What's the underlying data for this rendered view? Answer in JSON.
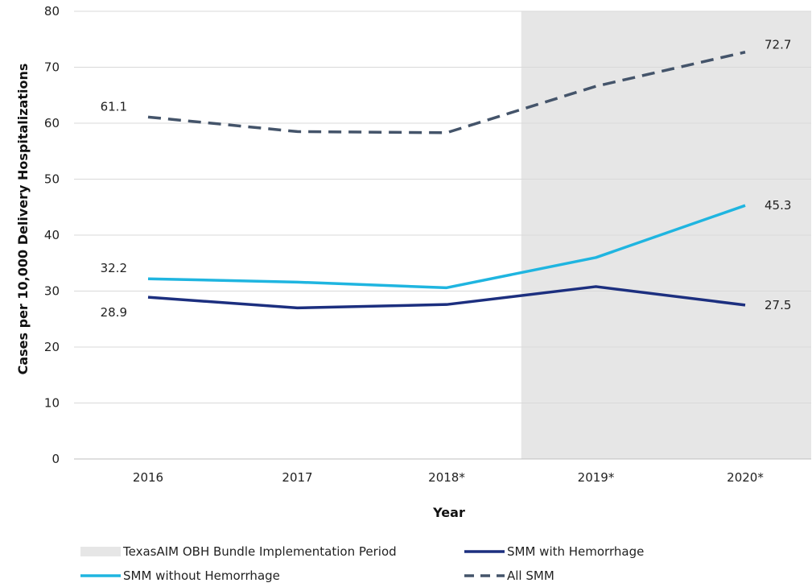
{
  "chart_data": {
    "type": "line",
    "categories": [
      "2016",
      "2017",
      "2018*",
      "2019*",
      "2020*"
    ],
    "xlabel": "Year",
    "ylabel": "Cases per 10,000 Delivery Hospitalizations",
    "ylim": [
      0,
      80
    ],
    "yticks": [
      0,
      10,
      20,
      30,
      40,
      50,
      60,
      70,
      80
    ],
    "grid": "horizontal",
    "shaded_region": {
      "label": "TexasAIM OBH Bundle Implementation Period",
      "from_category_index": 2.5,
      "to_category_index": 4.5,
      "color": "#e6e6e6"
    },
    "series": [
      {
        "name": "SMM with Hemorrhage",
        "values": [
          28.9,
          27.0,
          27.6,
          30.8,
          27.5
        ],
        "color": "#1c2f7f",
        "style": "solid",
        "labels": [
          {
            "index": 0,
            "text": "28.9",
            "pos": "below-left"
          },
          {
            "index": 4,
            "text": "27.5",
            "pos": "right"
          }
        ]
      },
      {
        "name": "SMM without Hemorrhage",
        "values": [
          32.2,
          31.6,
          30.6,
          36.0,
          45.3
        ],
        "color": "#1fb5e0",
        "style": "solid",
        "labels": [
          {
            "index": 0,
            "text": "32.2",
            "pos": "above-left"
          },
          {
            "index": 4,
            "text": "45.3",
            "pos": "right"
          }
        ]
      },
      {
        "name": "All SMM",
        "values": [
          61.1,
          58.5,
          58.3,
          66.6,
          72.7
        ],
        "color": "#44546a",
        "style": "dashed",
        "labels": [
          {
            "index": 0,
            "text": "61.1",
            "pos": "above-left"
          },
          {
            "index": 4,
            "text": "72.7",
            "pos": "above-right"
          }
        ]
      }
    ],
    "legend": {
      "placement": "bottom",
      "items": [
        {
          "label": "TexasAIM OBH Bundle Implementation Period",
          "kind": "box",
          "color": "#e6e6e6"
        },
        {
          "label": "SMM with Hemorrhage",
          "kind": "solid",
          "color": "#1c2f7f"
        },
        {
          "label": "SMM without Hemorrhage",
          "kind": "solid",
          "color": "#1fb5e0"
        },
        {
          "label": "All SMM",
          "kind": "dashed",
          "color": "#44546a"
        }
      ]
    }
  }
}
